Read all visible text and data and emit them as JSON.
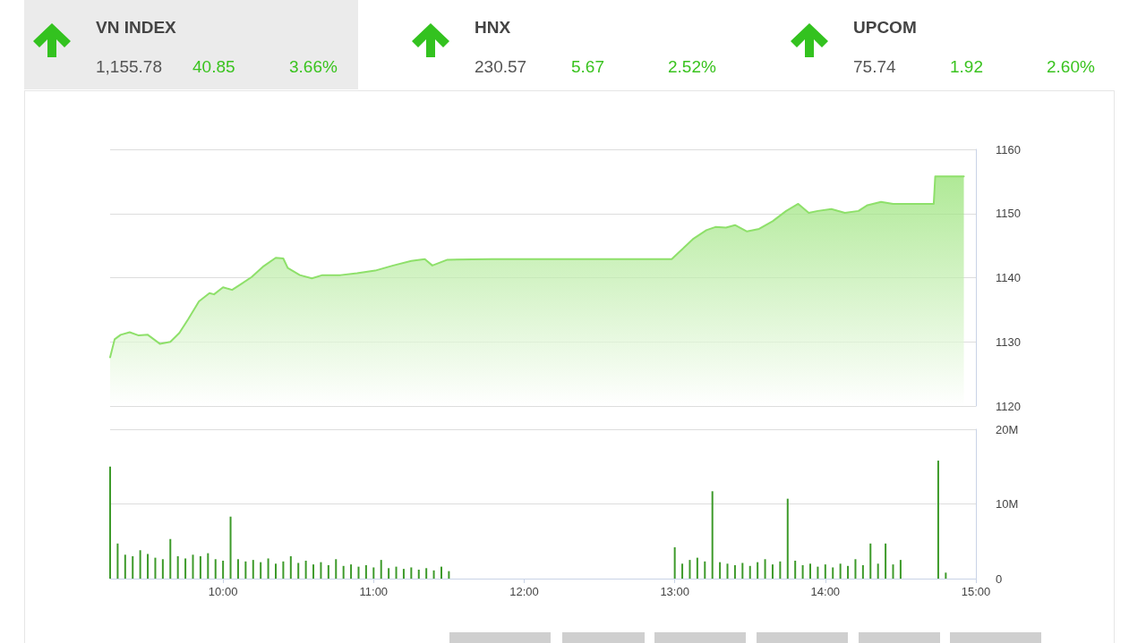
{
  "chart_data": [
    {
      "type": "other",
      "annotations": [
        "VN INDEX",
        "1,155.78",
        "40.85",
        "3.66%",
        "HNX",
        "230.57",
        "5.67",
        "2.52%",
        "UPCOM",
        "75.74",
        "1.92",
        "2.60%"
      ]
    },
    {
      "type": "area",
      "color": "#8ee06a",
      "marker": "none",
      "grid": "y",
      "tick_labels": "y",
      "xlim": [
        9.25,
        15
      ],
      "ylim": [
        1120,
        1160
      ],
      "yticks": [
        1120,
        1130,
        1140,
        1150,
        1160
      ],
      "x": [
        9.25,
        9.28,
        9.32,
        9.38,
        9.44,
        9.5,
        9.58,
        9.65,
        9.71,
        9.77,
        9.84,
        9.91,
        9.94,
        10,
        10.06,
        10.12,
        10.19,
        10.27,
        10.35,
        10.4,
        10.43,
        10.51,
        10.59,
        10.66,
        10.78,
        10.89,
        11.01,
        11.13,
        11.25,
        11.34,
        11.39,
        11.49,
        11.78,
        12.38,
        12.98,
        13.03,
        13.12,
        13.21,
        13.27,
        13.34,
        13.4,
        13.48,
        13.56,
        13.65,
        13.74,
        13.82,
        13.89,
        13.95,
        14.04,
        14.13,
        14.22,
        14.28,
        14.37,
        14.45,
        14.72,
        14.73,
        14.92
      ],
      "values": [
        1127.6,
        1130.4,
        1131.1,
        1131.5,
        1131,
        1131.1,
        1129.7,
        1130,
        1131.4,
        1133.6,
        1136.3,
        1137.6,
        1137.4,
        1138.5,
        1138.1,
        1139,
        1140.1,
        1141.8,
        1143.1,
        1143,
        1141.5,
        1140.4,
        1139.9,
        1140.4,
        1140.4,
        1140.7,
        1141.1,
        1141.9,
        1142.6,
        1142.9,
        1141.9,
        1142.8,
        1142.9,
        1142.9,
        1142.9,
        1144,
        1146,
        1147.4,
        1147.9,
        1147.8,
        1148.2,
        1147.2,
        1147.6,
        1148.8,
        1150.4,
        1151.5,
        1150.1,
        1150.4,
        1150.7,
        1150.1,
        1150.4,
        1151.3,
        1151.8,
        1151.5,
        1151.5,
        1155.8,
        1155.8
      ]
    },
    {
      "type": "bar",
      "color": "#3d9a2a",
      "grid": "y",
      "xlim": [
        9.25,
        15
      ],
      "xticks": [
        {
          "value": 10,
          "label": "10:00"
        },
        {
          "value": 11,
          "label": "11:00"
        },
        {
          "value": 12,
          "label": "12:00"
        },
        {
          "value": 13,
          "label": "13:00"
        },
        {
          "value": 14,
          "label": "14:00"
        },
        {
          "value": 15,
          "label": "15:00"
        }
      ],
      "ylim": [
        0,
        20
      ],
      "yticks": [
        0,
        {
          "value": 10,
          "label": "10M"
        },
        {
          "value": 20,
          "label": "20M"
        }
      ],
      "x": [
        9.25,
        9.3,
        9.35,
        9.4,
        9.45,
        9.5,
        9.55,
        9.6,
        9.65,
        9.7,
        9.75,
        9.8,
        9.85,
        9.9,
        9.95,
        10,
        10.05,
        10.1,
        10.15,
        10.2,
        10.25,
        10.3,
        10.35,
        10.4,
        10.45,
        10.5,
        10.55,
        10.6,
        10.65,
        10.7,
        10.75,
        10.8,
        10.85,
        10.9,
        10.95,
        11,
        11.05,
        11.1,
        11.15,
        11.2,
        11.25,
        11.3,
        11.35,
        11.4,
        11.45,
        11.5,
        13,
        13.05,
        13.1,
        13.15,
        13.2,
        13.25,
        13.3,
        13.35,
        13.4,
        13.45,
        13.5,
        13.55,
        13.6,
        13.65,
        13.7,
        13.75,
        13.8,
        13.85,
        13.9,
        13.95,
        14,
        14.05,
        14.1,
        14.15,
        14.2,
        14.25,
        14.3,
        14.35,
        14.4,
        14.45,
        14.5,
        14.75,
        14.8
      ],
      "values": [
        15,
        4.7,
        3.2,
        3,
        3.8,
        3.3,
        2.8,
        2.6,
        5.3,
        3,
        2.7,
        3.2,
        3,
        3.4,
        2.6,
        2.4,
        8.3,
        2.6,
        2.3,
        2.5,
        2.2,
        2.7,
        2,
        2.3,
        3,
        2.1,
        2.4,
        1.9,
        2.2,
        1.8,
        2.6,
        1.7,
        1.9,
        1.6,
        1.8,
        1.5,
        2.5,
        1.4,
        1.6,
        1.3,
        1.5,
        1.2,
        1.4,
        1.1,
        1.6,
        1,
        4.2,
        2,
        2.5,
        2.8,
        2.3,
        11.7,
        2.2,
        2,
        1.8,
        2.1,
        1.7,
        2.2,
        2.6,
        1.9,
        2.3,
        10.7,
        2.4,
        1.8,
        2,
        1.6,
        1.9,
        1.5,
        2,
        1.7,
        2.6,
        1.8,
        4.7,
        2,
        4.7,
        1.9,
        2.5,
        15.8,
        0.8
      ]
    }
  ]
}
